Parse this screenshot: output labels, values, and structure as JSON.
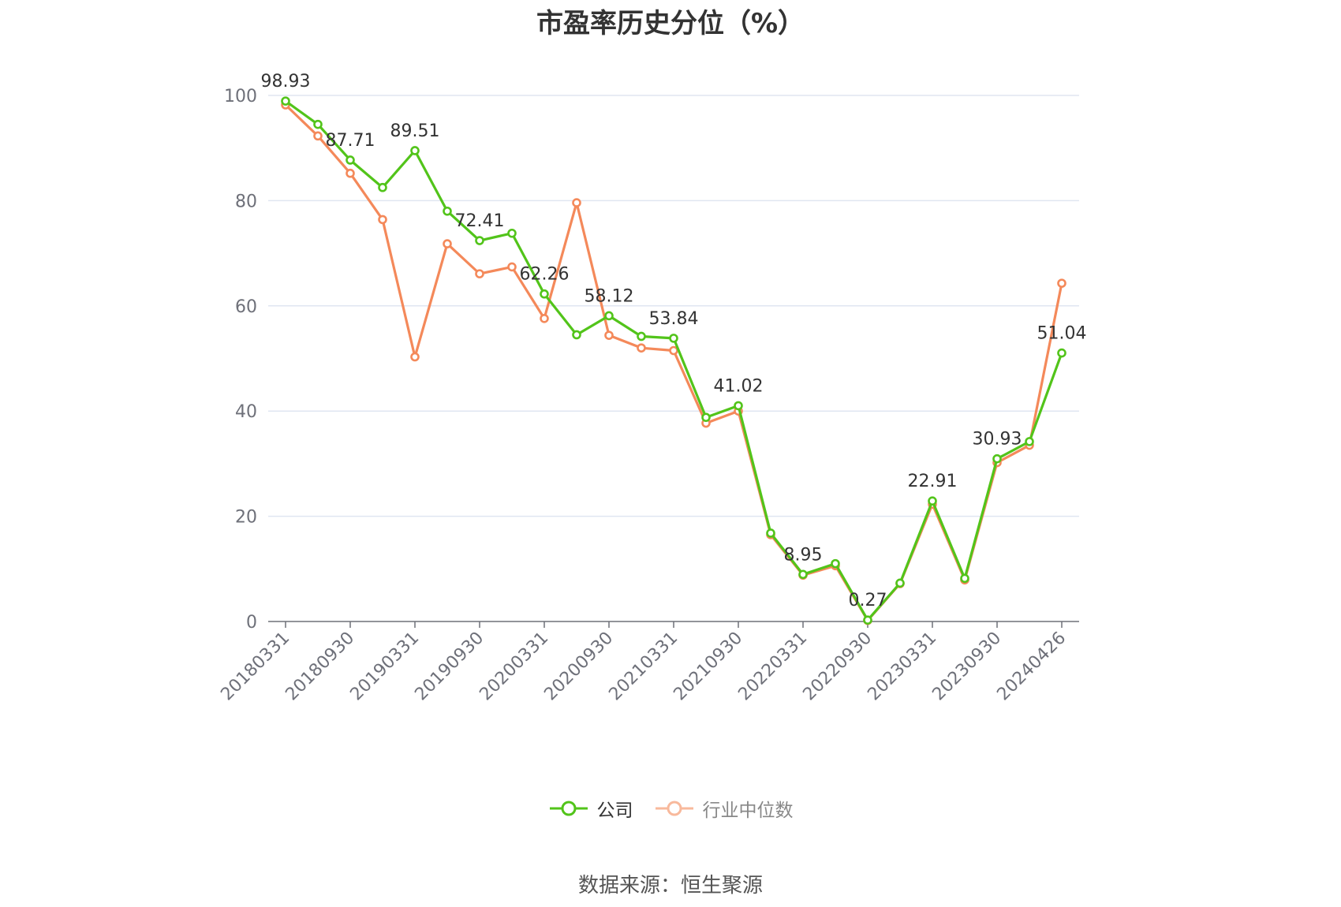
{
  "chart_data": {
    "type": "line",
    "title": "市盈率历史分位（%）",
    "x": [
      "20180331",
      "20180630",
      "20180930",
      "20181231",
      "20190331",
      "20190630",
      "20190930",
      "20191231",
      "20200331",
      "20200630",
      "20200930",
      "20201231",
      "20210331",
      "20210630",
      "20210930",
      "20211231",
      "20220331",
      "20220630",
      "20220930",
      "20221231",
      "20230331",
      "20230630",
      "20230930",
      "20231231",
      "20240426"
    ],
    "x_tick_labels": [
      "20180331",
      "20180930",
      "20190331",
      "20190930",
      "20200331",
      "20200930",
      "20210331",
      "20210930",
      "20220331",
      "20220930",
      "20230331",
      "20230930",
      "20240426"
    ],
    "series": [
      {
        "name": "公司",
        "color": "#52c41a",
        "values": [
          98.93,
          94.5,
          87.71,
          82.5,
          89.51,
          78.0,
          72.41,
          73.8,
          62.26,
          54.5,
          58.12,
          54.2,
          53.84,
          38.8,
          41.02,
          16.8,
          8.95,
          11.0,
          0.27,
          7.3,
          22.91,
          8.2,
          30.93,
          34.2,
          51.04
        ]
      },
      {
        "name": "行业中位数",
        "color": "#f4895a",
        "values": [
          98.2,
          92.3,
          85.2,
          76.4,
          50.3,
          71.8,
          66.1,
          67.4,
          57.6,
          79.6,
          54.4,
          52.0,
          51.5,
          37.7,
          40.0,
          16.5,
          8.8,
          10.6,
          0.2,
          7.2,
          22.3,
          7.9,
          30.2,
          33.5,
          64.3
        ]
      }
    ],
    "data_labels": [
      {
        "index": 0,
        "text": "98.93"
      },
      {
        "index": 2,
        "text": "87.71"
      },
      {
        "index": 4,
        "text": "89.51"
      },
      {
        "index": 6,
        "text": "72.41"
      },
      {
        "index": 8,
        "text": "62.26"
      },
      {
        "index": 10,
        "text": "58.12"
      },
      {
        "index": 12,
        "text": "53.84"
      },
      {
        "index": 14,
        "text": "41.02"
      },
      {
        "index": 16,
        "text": "8.95"
      },
      {
        "index": 18,
        "text": "0.27"
      },
      {
        "index": 20,
        "text": "22.91"
      },
      {
        "index": 22,
        "text": "30.93"
      },
      {
        "index": 24,
        "text": "51.04"
      }
    ],
    "y_ticks": [
      0,
      20,
      40,
      60,
      80,
      100
    ],
    "ylim": [
      0,
      100
    ],
    "grid": true,
    "legend": "bottom-center"
  },
  "legend": {
    "company_label": "公司",
    "industry_label": "行业中位数"
  },
  "source": "数据来源：恒生聚源"
}
